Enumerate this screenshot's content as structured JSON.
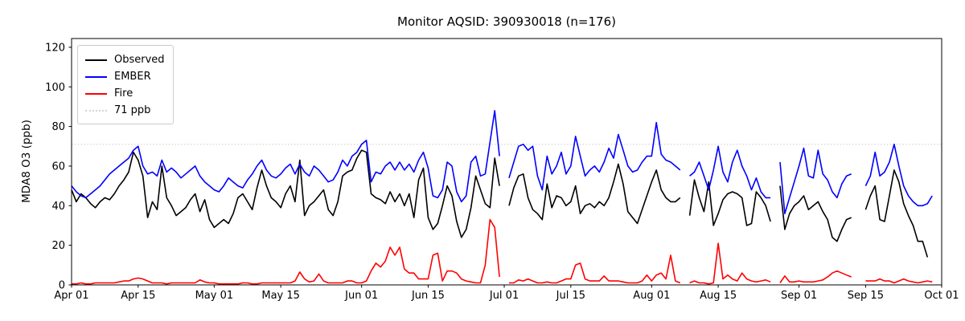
{
  "chart_data": {
    "type": "line",
    "title": "Monitor AQSID: 390930018 (n=176)",
    "xlabel": "",
    "ylabel": "MDA8 O3 (ppb)",
    "ylim": [
      0,
      124
    ],
    "yticks": [
      0,
      20,
      40,
      60,
      80,
      100,
      120
    ],
    "x_axis": {
      "unit": "day",
      "start": "Apr 01",
      "end": "Oct 01",
      "n_days": 183,
      "tick_labels": [
        "Apr 01",
        "Apr 15",
        "May 01",
        "May 15",
        "Jun 01",
        "Jun 15",
        "Jul 01",
        "Jul 15",
        "Aug 01",
        "Aug 15",
        "Sep 01",
        "Sep 15",
        "Oct 01"
      ],
      "tick_day_index": [
        0,
        14,
        30,
        44,
        61,
        75,
        91,
        105,
        122,
        136,
        153,
        167,
        183
      ]
    },
    "grid": false,
    "threshold": {
      "value": 71,
      "label": "71 ppb",
      "color": "#d3d3d3",
      "style": "dotted"
    },
    "legend": {
      "position": "upper-left",
      "entries": [
        {
          "label": "Observed",
          "color": "#000000",
          "style": "solid"
        },
        {
          "label": "EMBER",
          "color": "#0000ff",
          "style": "solid"
        },
        {
          "label": "Fire",
          "color": "#ff0000",
          "style": "solid"
        },
        {
          "label": "71 ppb",
          "color": "#d3d3d3",
          "style": "dotted"
        }
      ]
    },
    "series": [
      {
        "name": "Observed",
        "color": "#000000",
        "values": [
          48,
          42,
          46,
          44,
          41,
          39,
          42,
          44,
          43,
          46,
          50,
          53,
          57,
          67,
          63,
          55,
          34,
          42,
          38,
          60,
          44,
          40,
          35,
          37,
          39,
          43,
          46,
          37,
          43,
          33,
          29,
          31,
          33,
          31,
          36,
          44,
          46,
          42,
          38,
          49,
          58,
          50,
          44,
          42,
          39,
          46,
          50,
          42,
          63,
          35,
          40,
          42,
          45,
          48,
          38,
          35,
          42,
          55,
          57,
          58,
          64,
          68,
          67,
          46,
          44,
          43,
          41,
          47,
          42,
          46,
          40,
          46,
          34,
          53,
          59,
          34,
          28,
          31,
          40,
          50,
          45,
          32,
          24,
          28,
          39,
          55,
          48,
          41,
          39,
          64,
          50,
          null,
          40,
          49,
          55,
          56,
          44,
          38,
          36,
          33,
          51,
          39,
          45,
          44,
          40,
          42,
          50,
          36,
          40,
          41,
          39,
          42,
          40,
          44,
          52,
          61,
          51,
          37,
          34,
          31,
          38,
          45,
          52,
          58,
          48,
          44,
          42,
          42,
          44,
          null,
          35,
          53,
          44,
          37,
          52,
          30,
          36,
          43,
          46,
          47,
          46,
          44,
          30,
          31,
          47,
          44,
          40,
          32,
          null,
          50,
          28,
          36,
          40,
          42,
          45,
          38,
          40,
          42,
          37,
          33,
          24,
          22,
          28,
          33,
          34,
          null,
          null,
          38,
          45,
          50,
          33,
          32,
          45,
          58,
          52,
          41,
          35,
          30,
          22,
          22,
          14,
          null,
          null
        ]
      },
      {
        "name": "EMBER",
        "color": "#0000ff",
        "values": [
          50,
          47,
          45,
          44,
          46,
          48,
          50,
          53,
          56,
          58,
          60,
          62,
          64,
          68,
          70,
          60,
          56,
          57,
          55,
          63,
          57,
          59,
          57,
          54,
          56,
          58,
          60,
          55,
          52,
          50,
          48,
          47,
          50,
          54,
          52,
          50,
          49,
          53,
          56,
          60,
          63,
          58,
          55,
          54,
          56,
          59,
          61,
          56,
          61,
          57,
          55,
          60,
          58,
          55,
          52,
          53,
          57,
          63,
          60,
          65,
          67,
          71,
          73,
          52,
          57,
          56,
          60,
          62,
          58,
          62,
          58,
          61,
          57,
          63,
          67,
          59,
          45,
          44,
          48,
          62,
          60,
          47,
          42,
          45,
          62,
          65,
          55,
          56,
          72,
          88,
          65,
          null,
          54,
          62,
          70,
          71,
          68,
          70,
          55,
          48,
          65,
          56,
          60,
          67,
          56,
          60,
          75,
          65,
          55,
          58,
          60,
          57,
          62,
          69,
          64,
          76,
          68,
          60,
          57,
          58,
          62,
          65,
          65,
          82,
          66,
          63,
          62,
          60,
          58,
          null,
          55,
          57,
          62,
          55,
          48,
          58,
          70,
          57,
          52,
          62,
          68,
          60,
          55,
          48,
          54,
          47,
          44,
          44,
          null,
          62,
          36,
          44,
          52,
          60,
          69,
          55,
          54,
          68,
          56,
          53,
          47,
          44,
          51,
          55,
          56,
          null,
          null,
          50,
          55,
          67,
          55,
          57,
          62,
          71,
          60,
          50,
          45,
          42,
          40,
          40,
          41,
          45,
          null
        ]
      },
      {
        "name": "Fire",
        "color": "#ff0000",
        "values": [
          0.5,
          0.5,
          1,
          0.5,
          0.5,
          1,
          1,
          1,
          1,
          1,
          1.5,
          2,
          2,
          3,
          3.5,
          3,
          2,
          1,
          1,
          1,
          0.5,
          1,
          1,
          1,
          1,
          1,
          1,
          2.5,
          1.5,
          1,
          1,
          0.5,
          0.5,
          0.5,
          0.5,
          0.5,
          1,
          1,
          0.5,
          0.5,
          1,
          1,
          1,
          1,
          1,
          1,
          1,
          2,
          6.5,
          3,
          1.5,
          2,
          5.5,
          2,
          1,
          1,
          1,
          1,
          2,
          2,
          1,
          1,
          2,
          7,
          11,
          9,
          12,
          19,
          15,
          19,
          8,
          6,
          6,
          3,
          3,
          3,
          15,
          16,
          2,
          7,
          7,
          6,
          3,
          2,
          1.5,
          1,
          1,
          10,
          33,
          29,
          4,
          null,
          1,
          1,
          2.5,
          2,
          3,
          2,
          1,
          1,
          1.5,
          1,
          1,
          2,
          3,
          3,
          10,
          11,
          3,
          2,
          2,
          2,
          4.5,
          2,
          2,
          2,
          1.5,
          1,
          1,
          1,
          2,
          5,
          2,
          5,
          6,
          3,
          15,
          2,
          1,
          null,
          1,
          2,
          1,
          1,
          0.5,
          1,
          21,
          3,
          5,
          3,
          2,
          6,
          3,
          2,
          1.5,
          2,
          2.5,
          1.5,
          null,
          1,
          4.5,
          1.5,
          1.5,
          2,
          1.5,
          1.5,
          1.5,
          2,
          2.5,
          4,
          6,
          7,
          6,
          5,
          4,
          null,
          null,
          2,
          2,
          2,
          3,
          2,
          2,
          1,
          2,
          3,
          2,
          1.5,
          1,
          1.5,
          2,
          1.5,
          null
        ]
      }
    ],
    "colors": {
      "observed": "#000000",
      "ember": "#0000ff",
      "fire": "#ff0000",
      "threshold": "#d3d3d3",
      "frame": "#000000",
      "background": "#ffffff"
    }
  }
}
